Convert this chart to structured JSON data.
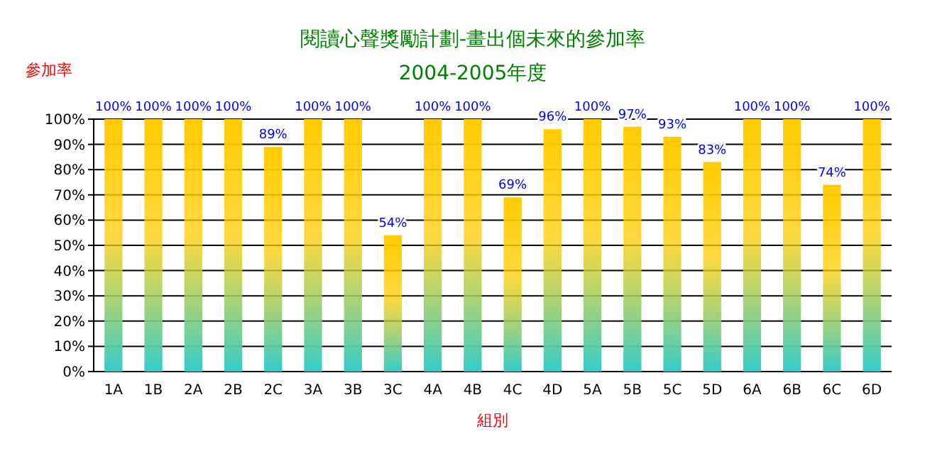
{
  "chart_data": {
    "type": "bar",
    "title": "閱讀心聲獎勵計劃-畫出個未來的參加率",
    "subtitle": "2004-2005年度",
    "xlabel": "組別",
    "ylabel": "參加率",
    "categories": [
      "1A",
      "1B",
      "2A",
      "2B",
      "2C",
      "3A",
      "3B",
      "3C",
      "4A",
      "4B",
      "4C",
      "4D",
      "5A",
      "5B",
      "5C",
      "5D",
      "6A",
      "6B",
      "6C",
      "6D"
    ],
    "values": [
      100,
      100,
      100,
      100,
      89,
      100,
      100,
      54,
      100,
      100,
      69,
      96,
      100,
      97,
      93,
      83,
      100,
      100,
      74,
      100
    ],
    "value_labels": [
      "100%",
      "100%",
      "100%",
      "100%",
      "89%",
      "100%",
      "100%",
      "54%",
      "100%",
      "100%",
      "69%",
      "96%",
      "100%",
      "97%",
      "93%",
      "83%",
      "100%",
      "100%",
      "74%",
      "100%"
    ],
    "color": "#ffcc00",
    "ylim": [
      0,
      100
    ],
    "yticks": [
      {
        "value": 0,
        "label": "0%"
      },
      {
        "value": 10,
        "label": "10%"
      },
      {
        "value": 20,
        "label": "20%"
      },
      {
        "value": 30,
        "label": "30%"
      },
      {
        "value": 40,
        "label": "40%"
      },
      {
        "value": 50,
        "label": "50%"
      },
      {
        "value": 60,
        "label": "60%"
      },
      {
        "value": 70,
        "label": "70%"
      },
      {
        "value": 80,
        "label": "80%"
      },
      {
        "value": 90,
        "label": "90%"
      },
      {
        "value": 100,
        "label": "100%"
      }
    ],
    "grid": "y"
  }
}
